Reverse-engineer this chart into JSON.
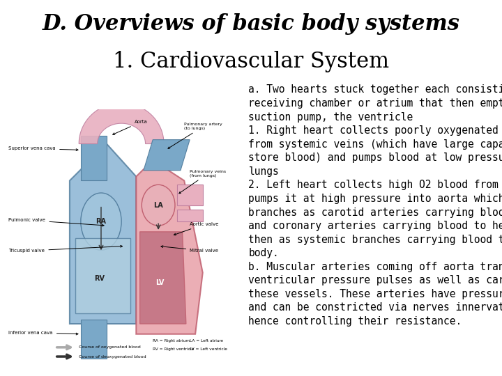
{
  "title_line1": "D. Overviews of basic body systems",
  "title_line2": "1. Cardiovascular System",
  "title_line1_size": 22,
  "title_line2_size": 22,
  "body_text": "a. Two hearts stuck together each consisting of a\nreceiving chamber or atrium that then empties into a\nsuction pump, the ventricle\n1. Right heart collects poorly oxygenated blood\nfrom systemic veins (which have large capacity to\nstore blood) and pumps blood at low pressure to\nlungs\n2. Left heart collects high O2 blood from lungs and\npumps it at high pressure into aorta which sends off\nbranches as carotid arteries carrying blood to brain\nand coronary arteries carrying blood to heart and\nthen as systemic branches carrying blood to rest of\nbody.\nb. Muscular arteries coming off aorta transmit\nventricular pressure pulses as well as carry blood to\nthese vessels. These arteries have pressure detectors\nand can be constricted via nerves innervating them,\nhence controlling their resistance.",
  "body_text_size": 10.5,
  "bg_color": "#ffffff",
  "title_color": "#000000",
  "text_color": "#000000",
  "right_heart_color": "#8ab4d4",
  "right_heart_edge": "#5580a0",
  "left_heart_color": "#e8a0a8",
  "left_heart_edge": "#c06070",
  "aorta_color": "#e8b0c0",
  "blue_vessel_color": "#7aa8c8",
  "ra_color": "#a0c4dc",
  "rv_color": "#b0cfe0",
  "la_color": "#e8b0b8",
  "lv_color": "#c07080"
}
